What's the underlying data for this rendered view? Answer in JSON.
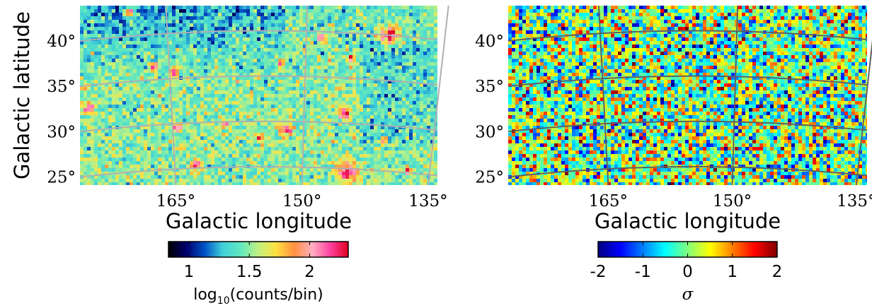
{
  "chart_data": [
    {
      "type": "heatmap",
      "ylabel": "Galactic latitude",
      "xlabel": "Galactic longitude",
      "xlim": [
        176.4,
        133.9
      ],
      "ylim": [
        24.1,
        43.9
      ],
      "xticks": [
        {
          "value": 165,
          "label": "165°"
        },
        {
          "value": 150,
          "label": "150°"
        },
        {
          "value": 135,
          "label": "135°"
        }
      ],
      "yticks": [
        {
          "value": 25,
          "label": "25°"
        },
        {
          "value": 30,
          "label": "30°"
        },
        {
          "value": 35,
          "label": "35°"
        },
        {
          "value": 40,
          "label": "40°"
        }
      ],
      "grid": true,
      "colormap": [
        "#000000",
        "#00006e",
        "#0050c8",
        "#40d0d8",
        "#60e8c0",
        "#c0f080",
        "#ffe040",
        "#ff9040",
        "#ffb0c0",
        "#ff40a0",
        "#e00020"
      ],
      "clim": [
        0.83,
        2.32
      ],
      "cticks": [
        1,
        1.5,
        2
      ],
      "colorbar_label": [
        "log",
        "10",
        "(counts/bin)"
      ]
    },
    {
      "type": "heatmap",
      "xlabel": "Galactic longitude",
      "xlim": [
        177.1,
        133.7
      ],
      "ylim": [
        24.1,
        43.9
      ],
      "xticks": [
        {
          "value": 165,
          "label": "165°"
        },
        {
          "value": 150,
          "label": "150°"
        },
        {
          "value": 135,
          "label": "135°"
        }
      ],
      "yticks": [
        {
          "value": 25,
          "label": "25°"
        },
        {
          "value": 30,
          "label": "30°"
        },
        {
          "value": 35,
          "label": "35°"
        },
        {
          "value": 40,
          "label": "40°"
        }
      ],
      "grid": true,
      "colormap": [
        "#00007f",
        "#0000ff",
        "#007fff",
        "#00ffff",
        "#7fff7f",
        "#ffff00",
        "#ff7f00",
        "#ff0000",
        "#7f0000"
      ],
      "clim": [
        -2,
        2
      ],
      "cticks": [
        -2,
        -1,
        0,
        1,
        2
      ],
      "colorbar_label": [
        "σ"
      ]
    }
  ]
}
